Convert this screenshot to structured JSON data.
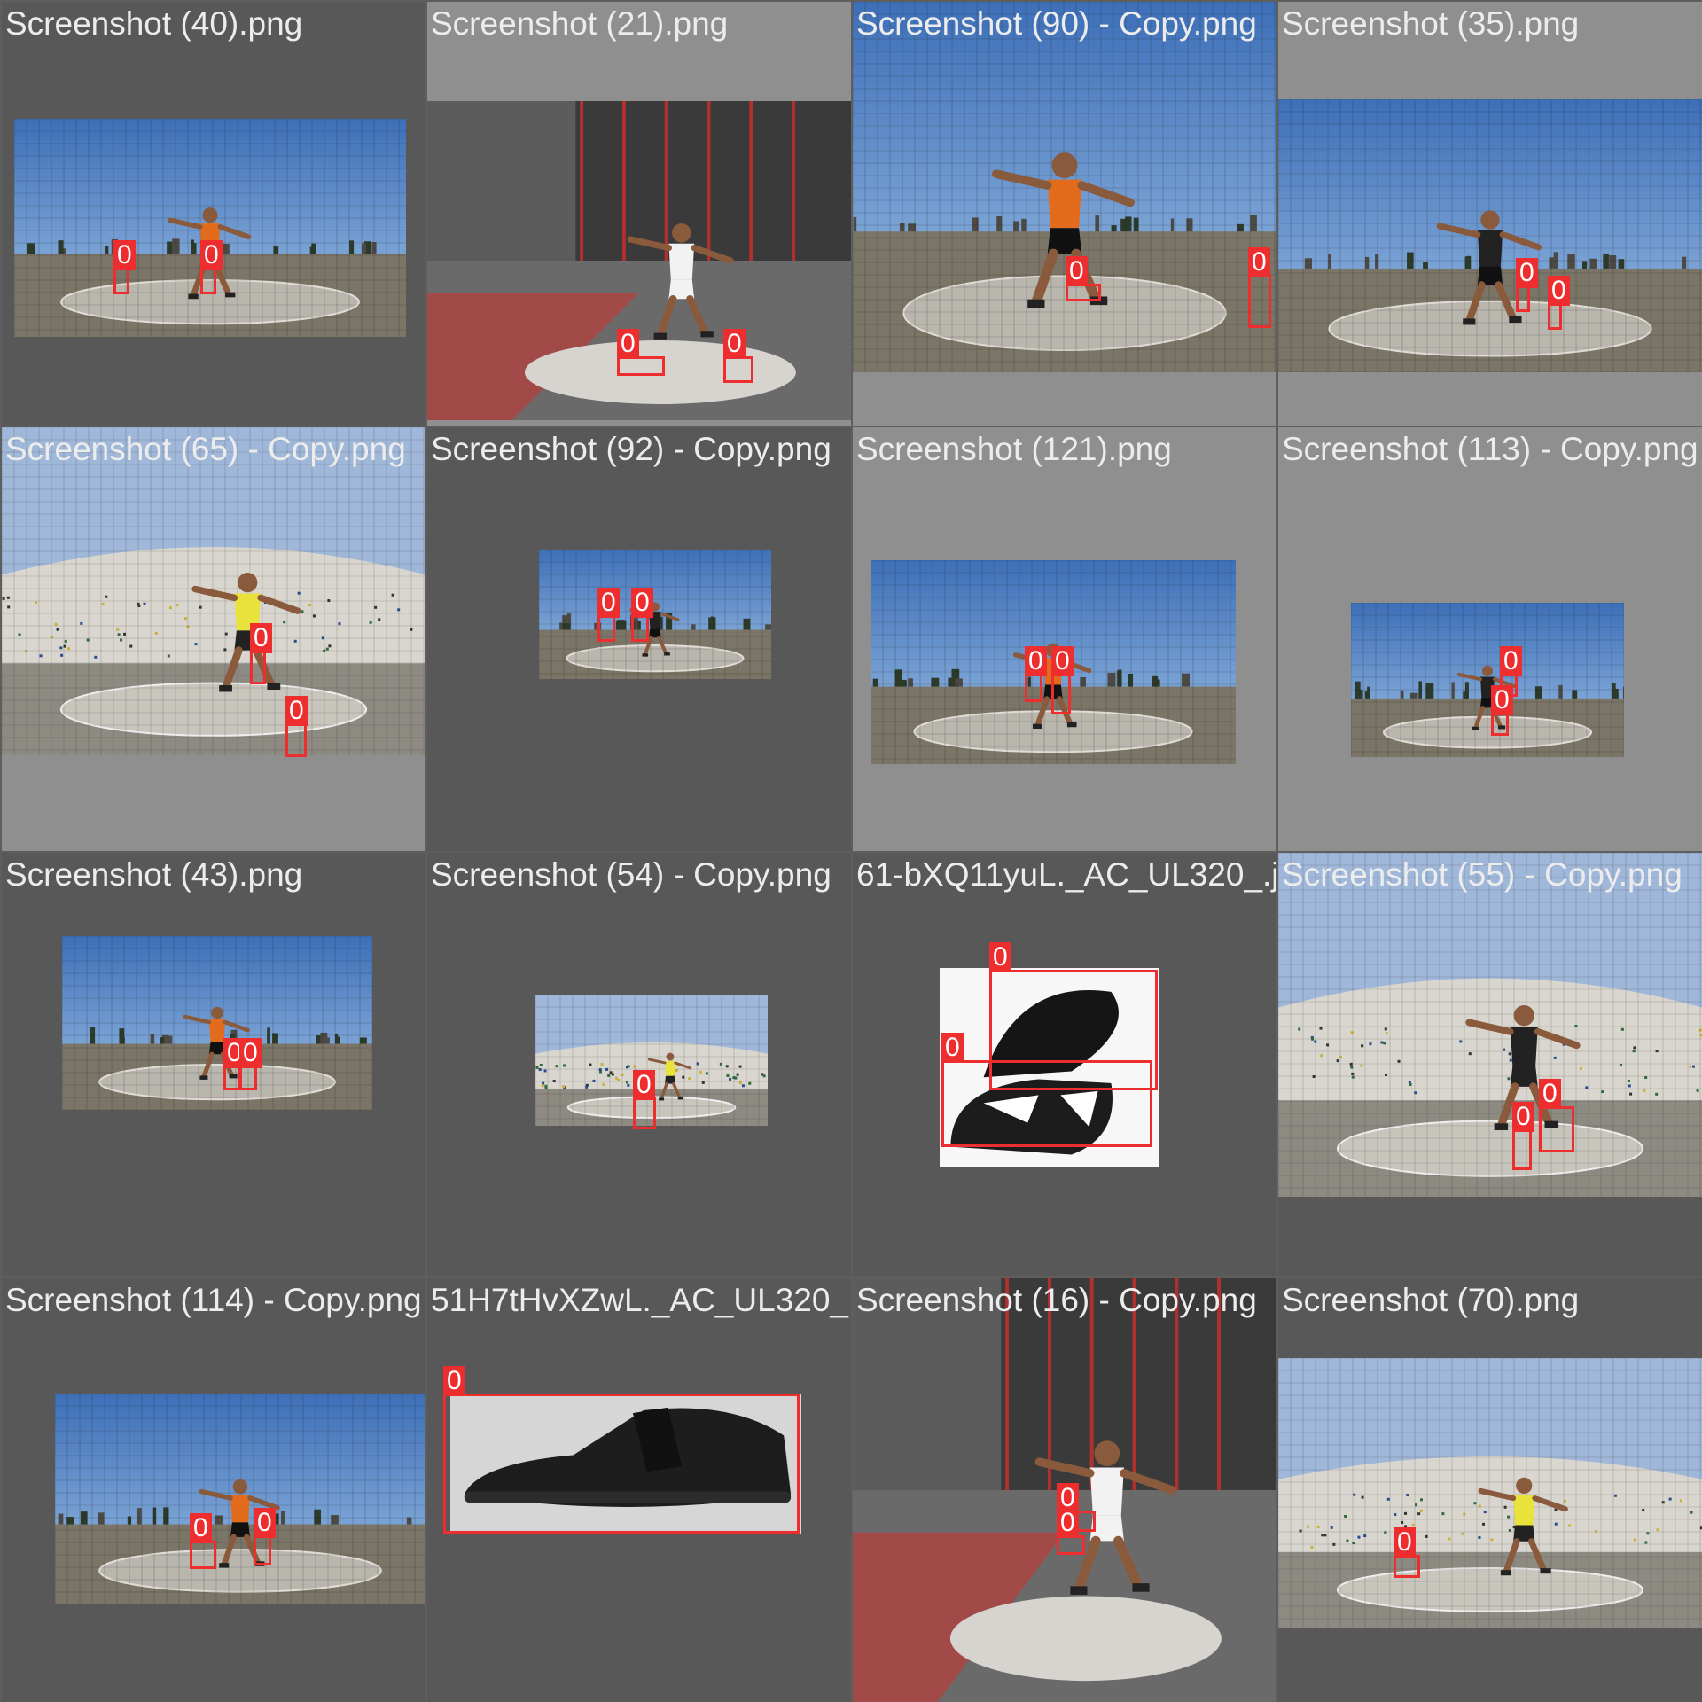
{
  "accent": "#ee2e2e",
  "tiles": [
    {
      "filename": "Screenshot (40).png",
      "theme": "dark",
      "scene": "field",
      "detections": [
        {
          "label": "0"
        },
        {
          "label": "0"
        }
      ]
    },
    {
      "filename": "Screenshot (21).png",
      "theme": "light",
      "scene": "indoor",
      "detections": [
        {
          "label": "0"
        },
        {
          "label": "0"
        }
      ]
    },
    {
      "filename": "Screenshot (90) - Copy.png",
      "theme": "light",
      "scene": "field",
      "detections": [
        {
          "label": "0"
        },
        {
          "label": "0"
        }
      ]
    },
    {
      "filename": "Screenshot (35).png",
      "theme": "light",
      "scene": "field",
      "detections": [
        {
          "label": "0"
        },
        {
          "label": "0"
        }
      ]
    },
    {
      "filename": "Screenshot (65) - Copy.png",
      "theme": "light",
      "scene": "stadium",
      "detections": [
        {
          "label": "0"
        },
        {
          "label": "0"
        }
      ]
    },
    {
      "filename": "Screenshot (92) - Copy.png",
      "theme": "dark",
      "scene": "field",
      "detections": [
        {
          "label": "0"
        },
        {
          "label": "0"
        }
      ]
    },
    {
      "filename": "Screenshot (121).png",
      "theme": "light",
      "scene": "field",
      "detections": [
        {
          "label": "0"
        },
        {
          "label": "0"
        }
      ]
    },
    {
      "filename": "Screenshot (113) - Copy.png",
      "theme": "light",
      "scene": "field",
      "detections": [
        {
          "label": "0"
        },
        {
          "label": "0"
        }
      ]
    },
    {
      "filename": "Screenshot (43).png",
      "theme": "dark",
      "scene": "field",
      "detections": [
        {
          "label": "0"
        },
        {
          "label": "0"
        }
      ]
    },
    {
      "filename": "Screenshot (54) - Copy.png",
      "theme": "dark",
      "scene": "stadium",
      "detections": [
        {
          "label": "0"
        }
      ]
    },
    {
      "filename": "61-bXQ11yuL._AC_UL320_.jpg",
      "theme": "dark",
      "scene": "shoe-white",
      "detections": [
        {
          "label": "0"
        },
        {
          "label": "0"
        }
      ]
    },
    {
      "filename": "Screenshot (55) - Copy.png",
      "theme": "dark",
      "scene": "stadium",
      "detections": [
        {
          "label": "0"
        },
        {
          "label": "0"
        }
      ]
    },
    {
      "filename": "Screenshot (114) - Copy.png",
      "theme": "dark",
      "scene": "field",
      "detections": [
        {
          "label": "0"
        },
        {
          "label": "0"
        }
      ]
    },
    {
      "filename": "51H7tHvXZwL._AC_UL320_.jpg",
      "theme": "dark",
      "scene": "shoe-grey",
      "detections": [
        {
          "label": "0"
        }
      ]
    },
    {
      "filename": "Screenshot (16) - Copy.png",
      "theme": "dark",
      "scene": "indoor",
      "detections": [
        {
          "label": "0"
        },
        {
          "label": "0"
        }
      ]
    },
    {
      "filename": "Screenshot (70).png",
      "theme": "dark",
      "scene": "stadium",
      "detections": [
        {
          "label": "0"
        }
      ]
    }
  ]
}
